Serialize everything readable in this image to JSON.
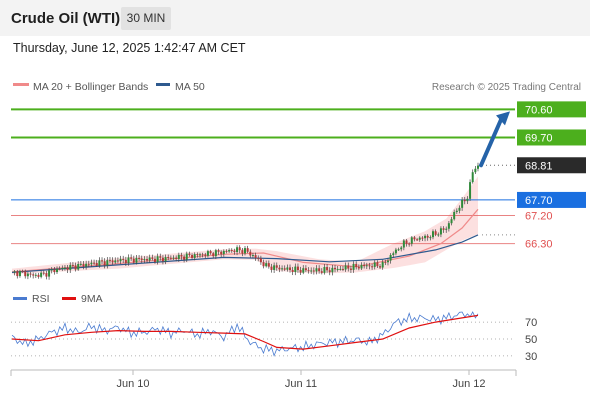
{
  "header": {
    "title": "Crude Oil (WTI)",
    "timeframe": "30 MIN"
  },
  "datetime": "Thursday, June 12, 2025 1:42:47 AM CET",
  "legend": {
    "ma": "MA 20 + Bollinger Bands",
    "ma50": "MA 50"
  },
  "credit": "Research © 2025 Trading Central",
  "rsi_legend": {
    "rsi": "RSI",
    "ma9": "9MA"
  },
  "colors": {
    "green": "#4caf1d",
    "blue": "#1a6fe0",
    "red": "#e05050",
    "dark": "#2a2a2a",
    "arrow": "#2563a8"
  },
  "chart_data": {
    "type": "line",
    "xlabels": [
      "Jun 10",
      "Jun 11",
      "Jun 12"
    ],
    "y_range": [
      65.2,
      70.9
    ],
    "levels": [
      {
        "value": "70.60",
        "kind": "resistance",
        "style": "box-green"
      },
      {
        "value": "69.70",
        "kind": "resistance",
        "style": "box-green"
      },
      {
        "value": "68.81",
        "kind": "last",
        "style": "box-dark"
      },
      {
        "value": "67.70",
        "kind": "pivot",
        "style": "box-blue"
      },
      {
        "value": "67.20",
        "kind": "support",
        "style": "text-red"
      },
      {
        "value": "66.30",
        "kind": "support",
        "style": "text-red"
      }
    ],
    "price_path": [
      [
        0,
        65.38
      ],
      [
        4,
        65.36
      ],
      [
        8,
        65.28
      ],
      [
        12,
        65.32
      ],
      [
        16,
        65.46
      ],
      [
        20,
        65.52
      ],
      [
        24,
        65.58
      ],
      [
        28,
        65.64
      ],
      [
        32,
        65.68
      ],
      [
        36,
        65.72
      ],
      [
        40,
        65.76
      ],
      [
        44,
        65.78
      ],
      [
        48,
        65.8
      ],
      [
        52,
        65.8
      ],
      [
        56,
        65.82
      ],
      [
        60,
        65.84
      ],
      [
        64,
        65.88
      ],
      [
        68,
        65.92
      ],
      [
        72,
        65.96
      ],
      [
        76,
        66.0
      ],
      [
        80,
        66.04
      ],
      [
        84,
        66.1
      ],
      [
        88,
        66.08
      ],
      [
        92,
        65.86
      ],
      [
        96,
        65.58
      ],
      [
        100,
        65.52
      ],
      [
        104,
        65.48
      ],
      [
        108,
        65.46
      ],
      [
        112,
        65.44
      ],
      [
        116,
        65.44
      ],
      [
        120,
        65.46
      ],
      [
        124,
        65.5
      ],
      [
        128,
        65.54
      ],
      [
        132,
        65.58
      ],
      [
        136,
        65.6
      ],
      [
        140,
        65.62
      ],
      [
        144,
        66.0
      ],
      [
        148,
        66.3
      ],
      [
        152,
        66.45
      ],
      [
        156,
        66.5
      ],
      [
        160,
        66.62
      ],
      [
        164,
        66.8
      ],
      [
        168,
        67.4
      ],
      [
        172,
        67.8
      ],
      [
        174,
        68.6
      ],
      [
        176,
        68.81
      ]
    ],
    "ma20": [
      [
        0,
        65.4
      ],
      [
        40,
        65.66
      ],
      [
        80,
        65.96
      ],
      [
        95,
        66.0
      ],
      [
        110,
        65.7
      ],
      [
        130,
        65.56
      ],
      [
        150,
        65.9
      ],
      [
        162,
        66.3
      ],
      [
        170,
        66.8
      ],
      [
        176,
        67.4
      ]
    ],
    "ma50": [
      [
        0,
        65.38
      ],
      [
        40,
        65.62
      ],
      [
        80,
        65.86
      ],
      [
        100,
        65.82
      ],
      [
        120,
        65.72
      ],
      [
        140,
        65.8
      ],
      [
        160,
        66.1
      ],
      [
        170,
        66.35
      ],
      [
        176,
        66.58
      ]
    ],
    "bb_upper": [
      [
        0,
        65.5
      ],
      [
        40,
        65.84
      ],
      [
        80,
        66.12
      ],
      [
        92,
        66.14
      ],
      [
        100,
        66.06
      ],
      [
        116,
        65.8
      ],
      [
        130,
        65.72
      ],
      [
        144,
        66.3
      ],
      [
        156,
        66.7
      ],
      [
        164,
        67.1
      ],
      [
        170,
        67.75
      ],
      [
        176,
        68.45
      ]
    ],
    "bb_lower": [
      [
        0,
        65.32
      ],
      [
        40,
        65.5
      ],
      [
        80,
        65.8
      ],
      [
        92,
        65.78
      ],
      [
        100,
        65.42
      ],
      [
        116,
        65.34
      ],
      [
        130,
        65.38
      ],
      [
        144,
        65.52
      ],
      [
        156,
        65.7
      ],
      [
        164,
        66.1
      ],
      [
        170,
        66.4
      ],
      [
        176,
        66.6
      ]
    ],
    "rsi_ticks": [
      "70",
      "50",
      "30"
    ],
    "rsi_range": [
      18,
      82
    ],
    "rsi": [
      [
        0,
        52
      ],
      [
        5,
        44
      ],
      [
        10,
        50
      ],
      [
        15,
        58
      ],
      [
        20,
        63
      ],
      [
        25,
        58
      ],
      [
        30,
        65
      ],
      [
        35,
        60
      ],
      [
        40,
        64
      ],
      [
        45,
        57
      ],
      [
        50,
        58
      ],
      [
        55,
        62
      ],
      [
        60,
        57
      ],
      [
        65,
        60
      ],
      [
        70,
        55
      ],
      [
        75,
        60
      ],
      [
        80,
        52
      ],
      [
        85,
        66
      ],
      [
        90,
        46
      ],
      [
        95,
        38
      ],
      [
        100,
        36
      ],
      [
        105,
        39
      ],
      [
        110,
        40
      ],
      [
        115,
        44
      ],
      [
        120,
        46
      ],
      [
        125,
        47
      ],
      [
        130,
        49
      ],
      [
        135,
        46
      ],
      [
        140,
        55
      ],
      [
        145,
        70
      ],
      [
        150,
        74
      ],
      [
        155,
        75
      ],
      [
        160,
        73
      ],
      [
        165,
        76
      ],
      [
        170,
        80
      ],
      [
        176,
        78
      ]
    ],
    "rsi_ma9": [
      [
        0,
        50
      ],
      [
        10,
        48
      ],
      [
        20,
        55
      ],
      [
        30,
        58
      ],
      [
        40,
        60
      ],
      [
        50,
        59
      ],
      [
        60,
        59
      ],
      [
        70,
        58
      ],
      [
        80,
        57
      ],
      [
        88,
        56
      ],
      [
        95,
        47
      ],
      [
        100,
        40
      ],
      [
        110,
        38
      ],
      [
        120,
        42
      ],
      [
        130,
        46
      ],
      [
        140,
        50
      ],
      [
        150,
        63
      ],
      [
        160,
        70
      ],
      [
        170,
        75
      ],
      [
        176,
        78
      ]
    ]
  }
}
